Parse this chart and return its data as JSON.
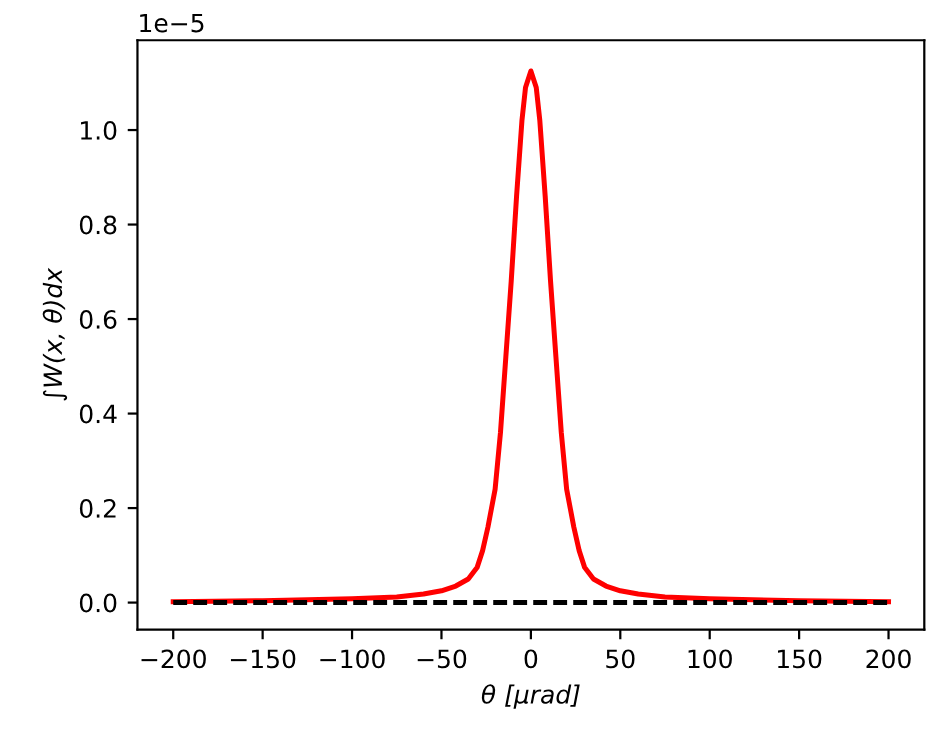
{
  "chart_data": {
    "type": "line",
    "xlabel": "θ [μrad]",
    "ylabel": "∫W(x, θ)dx",
    "annotations": [
      "1e−5"
    ],
    "xlim": [
      -220,
      220
    ],
    "xticks": [
      {
        "value": -200,
        "label": "−200"
      },
      {
        "value": -150,
        "label": "−150"
      },
      {
        "value": -100,
        "label": "−100"
      },
      {
        "value": -50,
        "label": "−50"
      },
      0,
      50,
      100,
      150,
      200
    ],
    "ylim": [
      -0.057,
      1.19
    ],
    "yticks": [
      {
        "value": 0,
        "label": "0.0"
      },
      0.2,
      0.4,
      0.6,
      0.8,
      {
        "value": 1,
        "label": "1.0"
      }
    ],
    "grid": false,
    "legend": false,
    "marker": "none",
    "series": [
      {
        "color": "#ff0000",
        "line_style": "solid",
        "x": [
          -200,
          -150,
          -100,
          -75,
          -60,
          -50,
          -42,
          -35,
          -30,
          -27,
          -24,
          -20,
          -17,
          -14,
          -11,
          -8,
          -5,
          -3,
          0,
          3,
          5,
          8,
          11,
          14,
          17,
          20,
          24,
          27,
          30,
          35,
          42,
          50,
          60,
          75,
          100,
          150,
          200
        ],
        "values": [
          0.002,
          0.004,
          0.008,
          0.012,
          0.018,
          0.025,
          0.035,
          0.05,
          0.075,
          0.11,
          0.16,
          0.24,
          0.36,
          0.52,
          0.68,
          0.86,
          1.02,
          1.09,
          1.125,
          1.09,
          1.02,
          0.86,
          0.68,
          0.52,
          0.36,
          0.24,
          0.16,
          0.11,
          0.075,
          0.05,
          0.035,
          0.025,
          0.018,
          0.012,
          0.008,
          0.004,
          0.002
        ]
      },
      {
        "color": "#000000",
        "line_style": "dashed",
        "x": [
          -200,
          200
        ],
        "values": [
          0,
          0
        ]
      }
    ]
  }
}
